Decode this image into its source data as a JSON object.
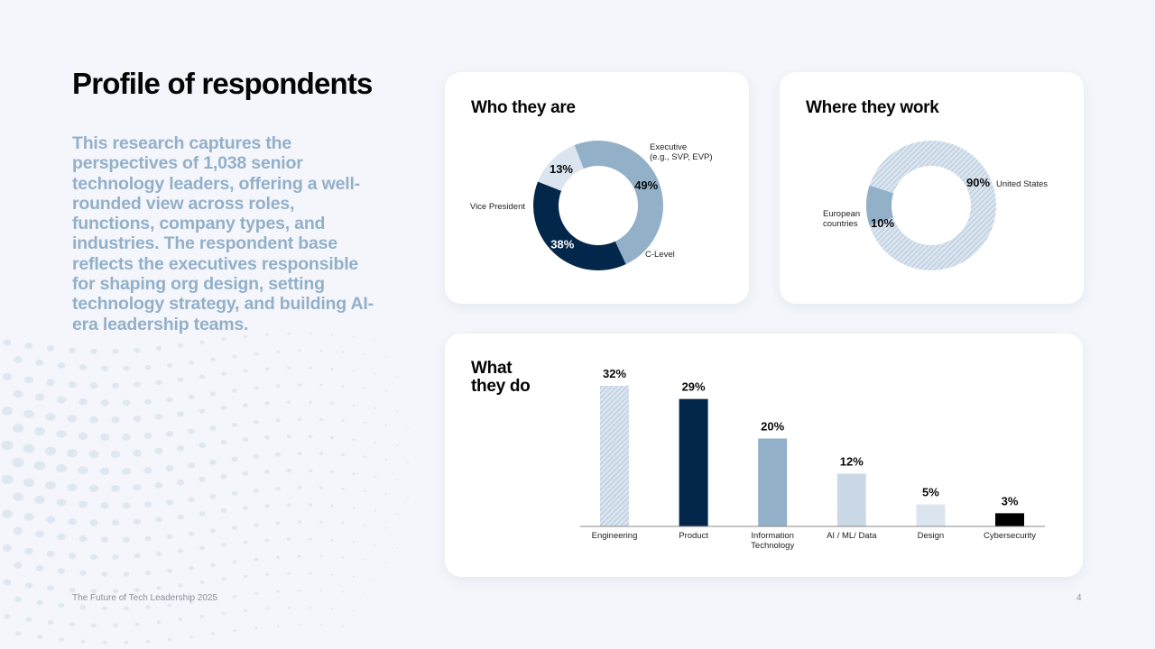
{
  "page": {
    "title": "Profile of respondents",
    "intro": "This research captures the perspectives of 1,038 senior technology leaders, offering a well-rounded view across roles, functions, company types, and industries. The respondent base reflects the executives responsible for shaping org design, setting technology strategy, and building AI-era leadership teams.",
    "footer": "The Future of Tech Leadership 2025",
    "page_number": "4"
  },
  "colors": {
    "navy": "#03274a",
    "mid_blue": "#93b0c9",
    "light_blue": "#cbd9e6",
    "pale_blue": "#dbe5ef",
    "hatch": "#a9c0d6",
    "black": "#000000"
  },
  "chart_data": [
    {
      "type": "pie",
      "title": "Who they are",
      "labels": [
        "Executive\n(e.g., SVP, EVP)",
        "C-Level",
        "Vice President"
      ],
      "value_labels": [
        "49%",
        "38%",
        "13%"
      ],
      "values": [
        49,
        38,
        13
      ],
      "colors": [
        "#93b0c9",
        "#03274a",
        "#dbe5ef"
      ]
    },
    {
      "type": "pie",
      "title": "Where they work",
      "labels": [
        "United States",
        "European\ncountries"
      ],
      "value_labels": [
        "90%",
        "10%"
      ],
      "values": [
        90,
        10
      ],
      "colors": [
        "hatch",
        "#93b0c9"
      ]
    },
    {
      "type": "bar",
      "title": "What\nthey do",
      "categories": [
        "Engineering",
        "Product",
        "Information\nTechnology",
        "AI / ML/ Data",
        "Design",
        "Cybersecurity"
      ],
      "values": [
        32,
        29,
        20,
        12,
        5,
        3
      ],
      "value_labels": [
        "32%",
        "29%",
        "20%",
        "12%",
        "5%",
        "3%"
      ],
      "colors": [
        "hatch",
        "#03274a",
        "#93b0c9",
        "#cbd9e6",
        "#dbe5ef",
        "#000000"
      ],
      "ylim": [
        0,
        32
      ]
    }
  ]
}
